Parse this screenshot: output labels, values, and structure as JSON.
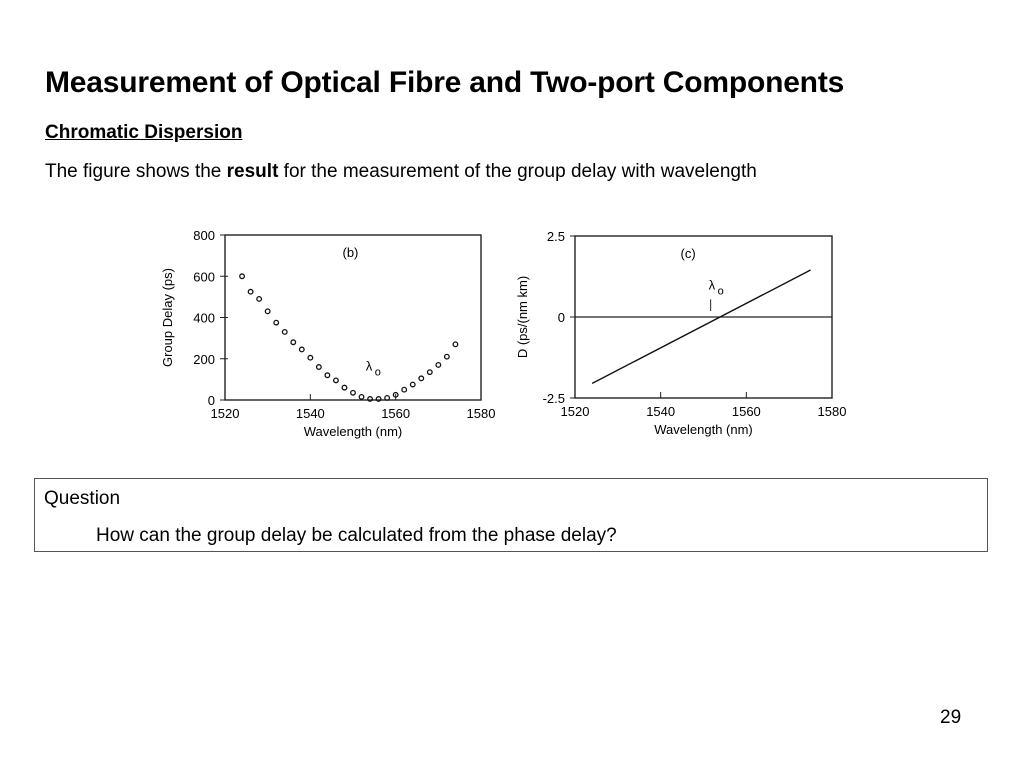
{
  "slide": {
    "title": "Measurement of Optical Fibre and Two-port Components",
    "subtitle": "Chromatic Dispersion",
    "body_prefix": "The figure shows the ",
    "body_bold": "result",
    "body_suffix": " for the measurement of the group delay with wavelength",
    "page_number": "29"
  },
  "question": {
    "label": "Question",
    "text": "How can the group delay be calculated from the phase delay?"
  },
  "chart_data": [
    {
      "type": "scatter",
      "panel_label": "(b)",
      "annotation": "λ",
      "annotation_sub": "o",
      "xlabel": "Wavelength (nm)",
      "ylabel": "Group Delay (ps)",
      "xlim": [
        1520,
        1580
      ],
      "ylim": [
        0,
        800
      ],
      "xticks": [
        1520,
        1540,
        1560,
        1580
      ],
      "yticks": [
        0,
        200,
        400,
        600,
        800
      ],
      "grid": false,
      "x": [
        1524,
        1526,
        1528,
        1530,
        1532,
        1534,
        1536,
        1538,
        1540,
        1542,
        1544,
        1546,
        1548,
        1550,
        1552,
        1554,
        1556,
        1558,
        1560,
        1562,
        1564,
        1566,
        1568,
        1570,
        1572,
        1574
      ],
      "y": [
        600,
        525,
        490,
        430,
        375,
        330,
        280,
        245,
        205,
        160,
        120,
        95,
        60,
        35,
        15,
        5,
        5,
        10,
        25,
        50,
        75,
        105,
        135,
        170,
        210,
        270
      ]
    },
    {
      "type": "line",
      "panel_label": "(c)",
      "annotation": "λ",
      "annotation_sub": "o",
      "xlabel": "Wavelength (nm)",
      "ylabel": "D (ps/(nm km)",
      "xlim": [
        1520,
        1580
      ],
      "ylim": [
        -2.5,
        2.5
      ],
      "xticks": [
        1520,
        1540,
        1560,
        1580
      ],
      "yticks": [
        -2.5,
        0,
        2.5
      ],
      "grid": false,
      "reference_line_y": 0,
      "x": [
        1524,
        1575
      ],
      "y": [
        -2.05,
        1.45
      ]
    }
  ]
}
